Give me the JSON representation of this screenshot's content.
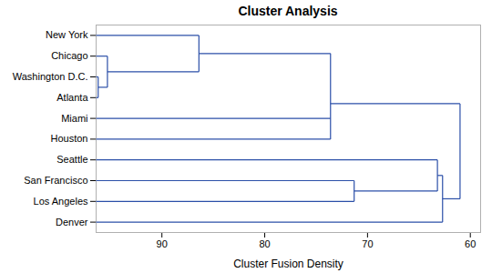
{
  "chart_data": {
    "type": "dendrogram",
    "title": "Cluster Analysis",
    "x_label": "Cluster Fusion Density",
    "color": "#2b4fa8",
    "leaves": [
      "New York",
      "Chicago",
      "Washington D.C.",
      "Atlanta",
      "Miami",
      "Houston",
      "Seattle",
      "San Francisco",
      "Los Angeles",
      "Denver"
    ],
    "tree": {
      "value": 61.0,
      "children": [
        {
          "value": 73.6,
          "children": [
            {
              "value": 86.4,
              "children": [
                "New York",
                {
                  "value": 95.3,
                  "children": [
                    "Chicago",
                    {
                      "value": 96.2,
                      "children": [
                        "Washington D.C.",
                        "Atlanta"
                      ]
                    }
                  ]
                }
              ]
            },
            "Miami",
            "Houston"
          ]
        },
        {
          "value": 62.7,
          "children": [
            {
              "value": 63.2,
              "children": [
                "Seattle",
                {
                  "value": 71.3,
                  "children": [
                    "San Francisco",
                    "Los Angeles"
                  ]
                }
              ]
            },
            "Denver"
          ]
        }
      ]
    },
    "xlim": [
      96.4,
      59
    ],
    "xticks": [
      90,
      80,
      70,
      60
    ]
  }
}
